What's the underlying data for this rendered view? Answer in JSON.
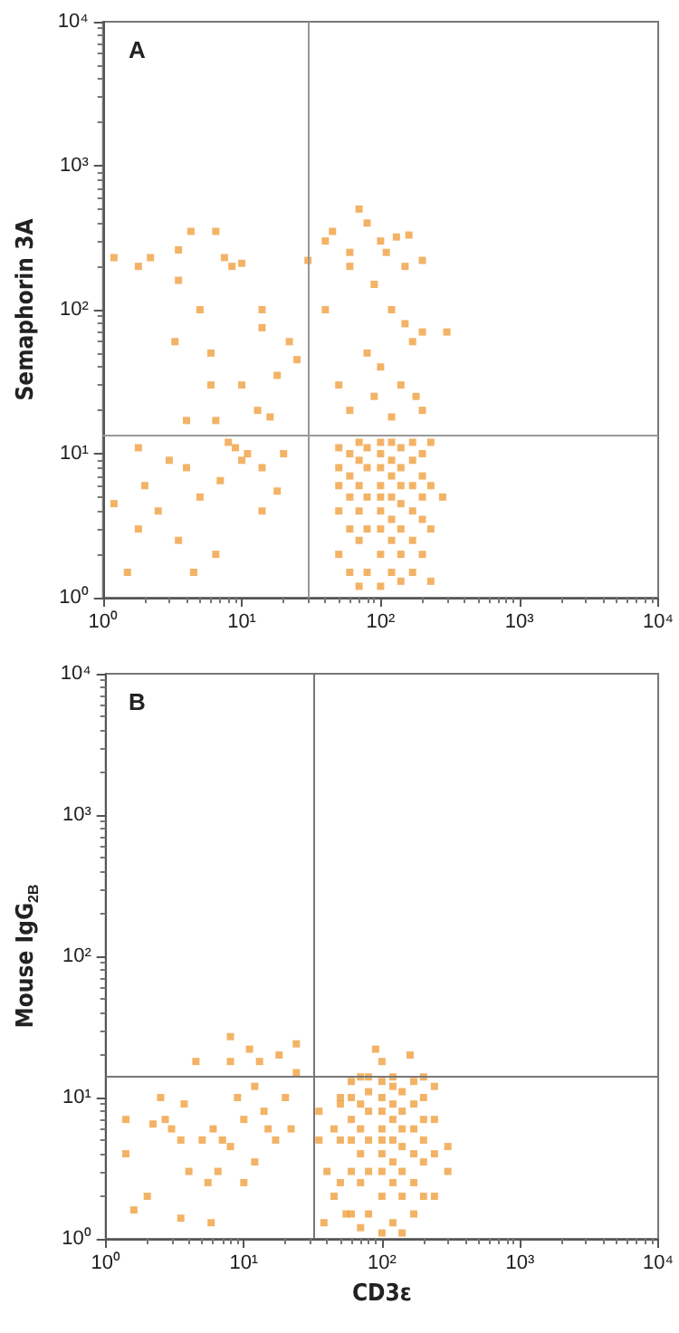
{
  "chart_data": [
    {
      "type": "scatter",
      "title": "A",
      "ylabel": "Semaphorin 3A",
      "log": "xy",
      "marker": "square",
      "color": "#f0a040",
      "xlim": [
        1,
        10000
      ],
      "ylim": [
        1,
        10000
      ],
      "xticks": [
        {
          "value": 1,
          "label": "10⁰"
        },
        {
          "value": 10,
          "label": "10¹"
        },
        {
          "value": 100,
          "label": "10²"
        },
        {
          "value": 1000,
          "label": "10³"
        },
        {
          "value": 10000,
          "label": "10⁴"
        }
      ],
      "yticks": [
        {
          "value": 1,
          "label": "10⁰"
        },
        {
          "value": 10,
          "label": "10¹"
        },
        {
          "value": 100,
          "label": "10²"
        },
        {
          "value": 1000,
          "label": "10³"
        },
        {
          "value": 10000,
          "label": "10⁴"
        }
      ],
      "ref_lines": [
        {
          "axis": "x",
          "value": 30,
          "color": "#999999"
        },
        {
          "axis": "y",
          "value": 13.5,
          "color": "#999999"
        }
      ],
      "x": [
        50,
        50,
        50,
        50,
        50,
        60,
        60,
        60,
        60,
        60,
        70,
        70,
        70,
        70,
        70,
        70,
        80,
        80,
        80,
        80,
        80,
        100,
        100,
        100,
        100,
        100,
        100,
        100,
        100,
        100,
        120,
        120,
        120,
        120,
        120,
        120,
        120,
        140,
        140,
        140,
        140,
        140,
        140,
        140,
        170,
        170,
        170,
        170,
        170,
        170,
        200,
        200,
        200,
        200,
        200,
        230,
        230,
        230,
        230,
        280,
        40,
        45,
        60,
        70,
        80,
        100,
        110,
        130,
        160,
        200,
        90,
        120,
        150,
        170,
        200,
        300,
        80,
        100,
        140,
        180,
        60,
        90,
        120,
        200,
        50,
        40,
        60,
        30,
        25,
        150,
        1.2,
        1.8,
        2.2,
        3.5,
        4.3,
        6.5,
        7.5,
        8.5,
        3.5,
        5,
        6,
        3.3,
        10,
        14,
        14,
        13,
        18,
        22,
        6,
        10,
        1.8,
        3,
        4,
        5,
        7,
        9,
        10,
        11,
        14,
        18,
        20,
        1.5,
        1.8,
        2.5,
        3.5,
        4.5,
        6.5,
        2,
        1.2,
        14,
        8,
        4,
        6.5,
        16
      ],
      "values": [
        2,
        4,
        6,
        8,
        11,
        1.5,
        3,
        5,
        7,
        10,
        1.2,
        2.5,
        4,
        6,
        9,
        12,
        1.5,
        3,
        5,
        8,
        11,
        1.2,
        2,
        3,
        4,
        5,
        6,
        8,
        10,
        12,
        1.5,
        2.5,
        3.5,
        5,
        7,
        9,
        12,
        1.3,
        2,
        3,
        4.5,
        6,
        8,
        11,
        1.5,
        2.5,
        4,
        6,
        9,
        12,
        2,
        3.5,
        5,
        7,
        10,
        1.3,
        3,
        6,
        12,
        5,
        300,
        350,
        250,
        500,
        400,
        300,
        250,
        320,
        330,
        220,
        150,
        100,
        80,
        60,
        70,
        70,
        50,
        40,
        30,
        25,
        20,
        25,
        18,
        20,
        30,
        100,
        200,
        220,
        45,
        200,
        230,
        200,
        230,
        260,
        350,
        350,
        230,
        200,
        160,
        100,
        50,
        60,
        210,
        100,
        75,
        20,
        35,
        60,
        30,
        30,
        11,
        9,
        8,
        5,
        6.5,
        11,
        9,
        10,
        8,
        5.5,
        10,
        1.5,
        3,
        4,
        2.5,
        1.5,
        2,
        6,
        4.5,
        4,
        12,
        17,
        17,
        18
      ]
    },
    {
      "type": "scatter",
      "title": "B",
      "ylabel": "Mouse IgG$_{2B}$",
      "xlabel": "CD3ε",
      "log": "xy",
      "marker": "square",
      "color": "#f0a040",
      "xlim": [
        1,
        10000
      ],
      "ylim": [
        1,
        10000
      ],
      "xticks": [
        {
          "value": 1,
          "label": "10⁰"
        },
        {
          "value": 10,
          "label": "10¹"
        },
        {
          "value": 100,
          "label": "10²"
        },
        {
          "value": 1000,
          "label": "10³"
        },
        {
          "value": 10000,
          "label": "10⁴"
        }
      ],
      "yticks": [
        {
          "value": 1,
          "label": "10⁰"
        },
        {
          "value": 10,
          "label": "10¹"
        },
        {
          "value": 100,
          "label": "10²"
        },
        {
          "value": 1000,
          "label": "10³"
        },
        {
          "value": 10000,
          "label": "10⁴"
        }
      ],
      "ref_lines": [
        {
          "axis": "x",
          "value": 32,
          "color": "#777777"
        },
        {
          "axis": "y",
          "value": 14,
          "color": "#777777"
        }
      ],
      "x": [
        50,
        50,
        50,
        60,
        60,
        60,
        60,
        60,
        60,
        70,
        70,
        70,
        70,
        70,
        70,
        80,
        80,
        80,
        80,
        80,
        80,
        100,
        100,
        100,
        100,
        100,
        100,
        100,
        100,
        100,
        120,
        120,
        120,
        120,
        120,
        120,
        120,
        120,
        140,
        140,
        140,
        140,
        140,
        140,
        140,
        170,
        170,
        170,
        170,
        170,
        170,
        200,
        200,
        200,
        200,
        200,
        200,
        240,
        240,
        240,
        240,
        35,
        35,
        38,
        40,
        45,
        45,
        50,
        55,
        300,
        300,
        90,
        160,
        100,
        1.4,
        1.4,
        1.6,
        2,
        2.2,
        2.5,
        2.7,
        3,
        3.5,
        3.7,
        4,
        4.5,
        5,
        5.5,
        6,
        7,
        8,
        8,
        8,
        9,
        10,
        10,
        11,
        12,
        13,
        14,
        15,
        17,
        18,
        20,
        22,
        24,
        24,
        3.5,
        5.8,
        6.5,
        12
      ],
      "values": [
        2.5,
        5,
        9,
        1.5,
        3,
        5,
        7,
        10,
        13,
        1.2,
        2.5,
        4,
        6,
        9,
        14,
        1.5,
        3,
        5,
        8,
        11,
        14,
        1.1,
        2,
        3,
        4,
        5,
        6,
        8,
        10,
        13,
        1.3,
        2.5,
        3.5,
        5,
        7,
        9,
        12,
        14,
        1.1,
        2,
        3,
        4.5,
        6,
        8,
        11,
        1.5,
        2.5,
        4,
        6,
        9,
        13,
        2,
        3.5,
        5,
        7,
        10,
        14,
        2,
        4,
        7,
        12,
        8,
        5,
        1.3,
        3,
        6,
        2,
        10,
        1.5,
        3,
        4.5,
        22,
        20,
        18,
        7,
        4,
        1.6,
        2,
        6.5,
        10,
        7,
        6,
        5,
        9,
        3,
        18,
        5,
        2.5,
        6,
        5,
        4.5,
        27,
        18,
        10,
        7,
        2.5,
        22,
        12,
        18,
        8,
        6,
        5,
        20,
        10,
        6,
        24,
        15,
        1.4,
        1.3,
        3,
        3.5
      ]
    }
  ]
}
